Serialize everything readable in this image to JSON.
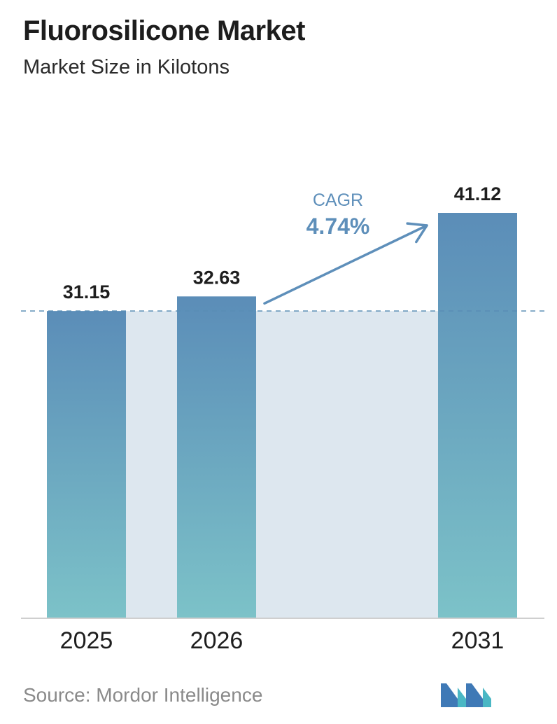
{
  "header": {
    "title": "Fluorosilicone Market",
    "subtitle": "Market Size in Kilotons"
  },
  "chart_data": {
    "type": "bar",
    "categories": [
      "2025",
      "2026",
      "2031"
    ],
    "values": [
      31.15,
      32.63,
      41.12
    ],
    "value_labels": [
      "31.15",
      "32.63",
      "41.12"
    ],
    "title": "Fluorosilicone Market",
    "subtitle": "Market Size in Kilotons",
    "xlabel": "",
    "ylabel": "",
    "ylim": [
      0,
      41.12
    ],
    "grid": false,
    "reference_line": 31.15,
    "annotation": {
      "label": "CAGR",
      "value": "4.74%"
    }
  },
  "colors": {
    "bar_top": "#5b8db8",
    "bar_bottom": "#7cc2c8",
    "band": "#dde7ef",
    "annotation": "#5e8fba",
    "dashed_line": "#5a8db5",
    "axis": "#cfcfcf"
  },
  "footer": {
    "source": "Source:  Mordor Intelligence",
    "logo_icon": "mordor-intelligence-logo-icon"
  }
}
